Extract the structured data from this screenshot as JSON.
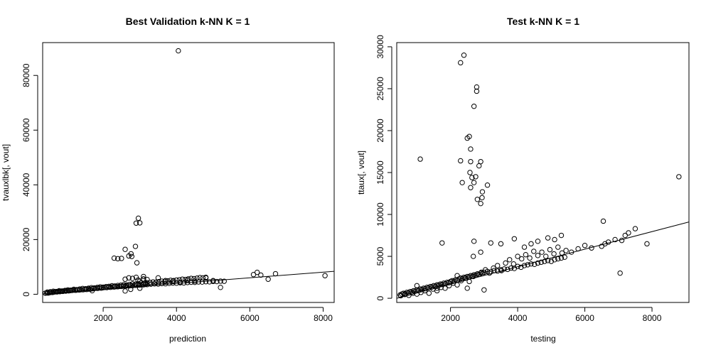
{
  "chart_data": [
    {
      "type": "scatter",
      "title": "Best Validation k-NN K =  1",
      "xlabel": "prediction",
      "ylabel": "tvauxlbk[, vout]",
      "xlim": [
        350,
        8300
      ],
      "ylim": [
        -3000,
        92000
      ],
      "xticks": [
        2000,
        4000,
        6000,
        8000
      ],
      "yticks": [
        0,
        20000,
        40000,
        60000,
        80000
      ],
      "xtick_labels": [
        "2000",
        "4000",
        "6000",
        "8000"
      ],
      "ytick_labels": [
        "0",
        "20000",
        "40000",
        "60000",
        "80000"
      ],
      "line": {
        "x": [
          350,
          8300
        ],
        "y": [
          150,
          8400
        ]
      },
      "points_x": [
        420,
        460,
        500,
        540,
        580,
        620,
        660,
        700,
        740,
        780,
        820,
        860,
        900,
        940,
        980,
        1020,
        1060,
        1100,
        1150,
        1200,
        1250,
        1300,
        1350,
        1400,
        1450,
        1500,
        1550,
        1600,
        1650,
        1700,
        1750,
        1800,
        1850,
        1900,
        1950,
        2000,
        2050,
        2100,
        2150,
        2200,
        2250,
        2300,
        2350,
        2400,
        2450,
        2500,
        2550,
        2600,
        2650,
        2700,
        2750,
        2800,
        2850,
        2900,
        2950,
        3000,
        3050,
        3100,
        3150,
        3200,
        3300,
        3400,
        3500,
        3600,
        3700,
        3800,
        3900,
        4000,
        4100,
        4200,
        4300,
        4400,
        4500,
        4600,
        4700,
        4800,
        4900,
        5000,
        5100,
        5200,
        5300,
        480,
        560,
        640,
        720,
        800,
        880,
        960,
        1040,
        1120,
        1200,
        1280,
        1360,
        1440,
        1520,
        1600,
        1680,
        1760,
        1840,
        1920,
        2000,
        2080,
        2160,
        2240,
        2320,
        2400,
        2480,
        2560,
        2640,
        2720,
        2800,
        2880,
        2960,
        3040,
        3120,
        3200,
        3280,
        3360,
        3440,
        3520,
        3600,
        3680,
        3760,
        3840,
        3920,
        4000,
        4080,
        4160,
        4240,
        4320,
        4400,
        4480,
        4560,
        4640,
        4720,
        4800,
        2600,
        2700,
        2800,
        2900,
        2950,
        3000,
        3100,
        3200,
        3500,
        3700,
        3900,
        4100,
        4300,
        4500,
        4800,
        5000,
        5200,
        6100,
        6200,
        6300,
        6500,
        6700,
        8050,
        4050,
        2900,
        2960,
        3000,
        2880,
        2920,
        2400,
        2500,
        2600,
        2700,
        2780,
        2760,
        2300,
        3100,
        3100,
        3150,
        1700,
        2600,
        2750,
        3000
      ],
      "points_y": [
        400,
        500,
        450,
        600,
        700,
        650,
        800,
        900,
        850,
        1000,
        950,
        1100,
        1050,
        1200,
        1150,
        1300,
        1250,
        1350,
        1400,
        1500,
        1450,
        1600,
        1550,
        1700,
        1650,
        1800,
        1750,
        1900,
        1850,
        2000,
        2100,
        2200,
        2150,
        2300,
        2250,
        2400,
        2500,
        2450,
        2600,
        2550,
        2700,
        2650,
        2800,
        2750,
        2900,
        2850,
        3000,
        2950,
        3100,
        3050,
        3200,
        3150,
        3300,
        3250,
        3400,
        3350,
        3500,
        3450,
        3600,
        3550,
        3700,
        3800,
        3750,
        3900,
        3850,
        4000,
        4100,
        4050,
        4200,
        4150,
        4300,
        4400,
        4350,
        4500,
        4450,
        4600,
        4550,
        4700,
        4650,
        4800,
        4750,
        800,
        900,
        1100,
        1000,
        1300,
        1200,
        1400,
        1600,
        1500,
        1800,
        1700,
        1900,
        2100,
        2000,
        2200,
        2400,
        2300,
        2500,
        2700,
        2600,
        2800,
        2900,
        3100,
        3000,
        3200,
        3300,
        3500,
        3400,
        3600,
        3800,
        3700,
        3900,
        4100,
        4000,
        4200,
        4300,
        4500,
        4400,
        4600,
        4800,
        4700,
        4900,
        5100,
        5000,
        5200,
        5300,
        5500,
        5400,
        5600,
        5800,
        5700,
        5900,
        6100,
        6000,
        6200,
        5500,
        6000,
        5800,
        6200,
        5200,
        4800,
        5600,
        5400,
        6000,
        5000,
        4800,
        4400,
        5200,
        4800,
        6000,
        5000,
        2500,
        7200,
        8000,
        7000,
        5500,
        7500,
        6800,
        89000,
        26000,
        27800,
        26100,
        17500,
        11500,
        13000,
        13100,
        16400,
        14000,
        13800,
        14800,
        13200,
        6500,
        5500,
        4200,
        1300,
        1200,
        1800,
        2200
      ],
      "grid": false,
      "legend": "none"
    },
    {
      "type": "scatter",
      "title": "Test k-NN K =  1",
      "xlabel": "testing",
      "ylabel": "ttaux[, vout]",
      "xlim": [
        400,
        9100
      ],
      "ylim": [
        -500,
        30500
      ],
      "xticks": [
        2000,
        4000,
        6000,
        8000
      ],
      "yticks": [
        0,
        5000,
        10000,
        15000,
        20000,
        25000,
        30000
      ],
      "xtick_labels": [
        "2000",
        "4000",
        "6000",
        "8000"
      ],
      "ytick_labels": [
        "0",
        "5000",
        "10000",
        "15000",
        "20000",
        "25000",
        "30000"
      ],
      "line": {
        "x": [
          400,
          9100
        ],
        "y": [
          0,
          9100
        ]
      },
      "points_x": [
        500,
        550,
        600,
        650,
        700,
        750,
        800,
        850,
        900,
        950,
        1000,
        1050,
        1100,
        1150,
        1200,
        1250,
        1300,
        1350,
        1400,
        1450,
        1500,
        1550,
        1600,
        1650,
        1700,
        1750,
        1800,
        1850,
        1900,
        1950,
        2000,
        2050,
        2100,
        2150,
        2200,
        2250,
        2300,
        2350,
        2400,
        2450,
        2500,
        2550,
        2600,
        2650,
        2700,
        2750,
        2800,
        2850,
        2900,
        2950,
        3000,
        3100,
        3200,
        3300,
        3400,
        3500,
        3600,
        3700,
        3800,
        3900,
        4000,
        4100,
        4200,
        4300,
        4400,
        4500,
        4600,
        4700,
        4800,
        4900,
        5000,
        5100,
        5200,
        5300,
        5400,
        520,
        640,
        760,
        880,
        1000,
        1120,
        1240,
        1360,
        1480,
        1600,
        1720,
        1840,
        1960,
        2080,
        2200,
        2320,
        2440,
        2560,
        2680,
        2800,
        2920,
        3040,
        3160,
        3280,
        3400,
        3520,
        3640,
        3760,
        3880,
        4000,
        4120,
        4240,
        4360,
        4480,
        4600,
        4720,
        4840,
        4960,
        5080,
        5200,
        5320,
        5440,
        5600,
        5800,
        6000,
        6200,
        6500,
        6600,
        6700,
        6900,
        7100,
        7200,
        7300,
        7500,
        7850,
        8800,
        7050,
        6550,
        5300,
        4600,
        4900,
        5100,
        4200,
        4400,
        3900,
        3200,
        3500,
        2700,
        1750,
        2350,
        2600,
        2750,
        2500,
        3000,
        2200,
        1100,
        1000,
        1600,
        2300,
        2500,
        2560,
        2600,
        2580,
        2640,
        2700,
        2900,
        2950,
        2600,
        2800,
        2900,
        2940,
        2700,
        2780,
        2780,
        2300,
        2400,
        2850,
        3100,
        2900,
        2680
      ],
      "points_y": [
        400,
        500,
        600,
        550,
        700,
        650,
        800,
        750,
        900,
        850,
        1000,
        950,
        1100,
        1050,
        1200,
        1150,
        1300,
        1250,
        1400,
        1350,
        1500,
        1450,
        1600,
        1550,
        1700,
        1650,
        1800,
        1750,
        1900,
        1850,
        2000,
        2100,
        2050,
        2200,
        2150,
        2300,
        2400,
        2350,
        2500,
        2450,
        2600,
        2550,
        2700,
        2650,
        2800,
        2750,
        2900,
        2850,
        3000,
        2950,
        3100,
        3200,
        3150,
        3300,
        3250,
        3400,
        3500,
        3450,
        3600,
        3550,
        3800,
        3700,
        3900,
        4000,
        4100,
        4050,
        4200,
        4300,
        4400,
        4500,
        4400,
        4600,
        4700,
        4800,
        4900,
        300,
        450,
        350,
        600,
        500,
        700,
        900,
        600,
        1100,
        900,
        1300,
        1200,
        1500,
        1800,
        1600,
        2100,
        2400,
        2000,
        2600,
        2900,
        3100,
        3400,
        3000,
        3600,
        3900,
        3300,
        4200,
        4600,
        4100,
        5000,
        4700,
        5200,
        4800,
        5600,
        5100,
        5500,
        5000,
        5800,
        5300,
        6100,
        5400,
        5700,
        5500,
        5900,
        6300,
        6000,
        6200,
        6500,
        6700,
        7000,
        6900,
        7500,
        7800,
        8300,
        6500,
        14500,
        3000,
        9200,
        7500,
        6800,
        7200,
        7000,
        6100,
        6500,
        7100,
        6600,
        6500,
        6800,
        6600,
        13800,
        16300,
        14500,
        1200,
        1000,
        2700,
        16600,
        1500,
        1200,
        16400,
        19100,
        19300,
        17800,
        15000,
        14400,
        13800,
        16300,
        12700,
        13200,
        11800,
        11300,
        12000,
        22900,
        24700,
        25200,
        28100,
        29000,
        15800,
        13500,
        5500,
        5000,
        4500,
        3000
      ],
      "grid": false,
      "legend": "none"
    }
  ]
}
